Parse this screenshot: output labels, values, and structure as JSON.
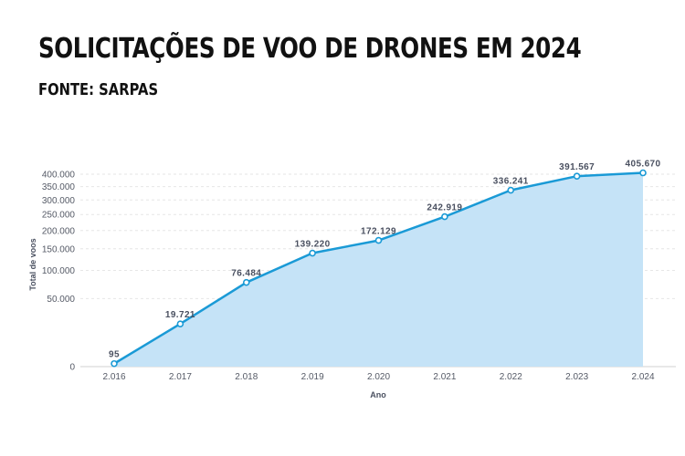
{
  "header": {
    "title": "SOLICITAÇÕES DE VOO DE DRONES EM 2024",
    "subtitle": "FONTE: SARPAS"
  },
  "colors": {
    "line": "#1a9ad6",
    "area": "#c5e3f7",
    "grid": "#e6e6e6",
    "text": "#4a5060"
  },
  "chart_data": {
    "type": "area",
    "scale": "sqrt",
    "grid": true,
    "xlabel": "Ano",
    "ylabel": "Total de voos",
    "categories": [
      "2.016",
      "2.017",
      "2.018",
      "2.019",
      "2.020",
      "2.021",
      "2.022",
      "2.023",
      "2.024"
    ],
    "series": [
      {
        "values": [
          95,
          19721,
          76484,
          139220,
          172129,
          242919,
          336241,
          391567,
          405670
        ],
        "labels": [
          "95",
          "19.721",
          "76.484",
          "139.220",
          "172.129",
          "242.919",
          "336.241",
          "391.567",
          "405.670"
        ]
      }
    ],
    "yticks": [
      0,
      50000,
      100000,
      150000,
      200000,
      250000,
      300000,
      350000,
      400000
    ],
    "ytick_labels": [
      "0",
      "50.000",
      "100.000",
      "150.000",
      "200.000",
      "250.000",
      "300.000",
      "350.000",
      "400.000"
    ],
    "ylim": [
      0,
      410000
    ]
  }
}
